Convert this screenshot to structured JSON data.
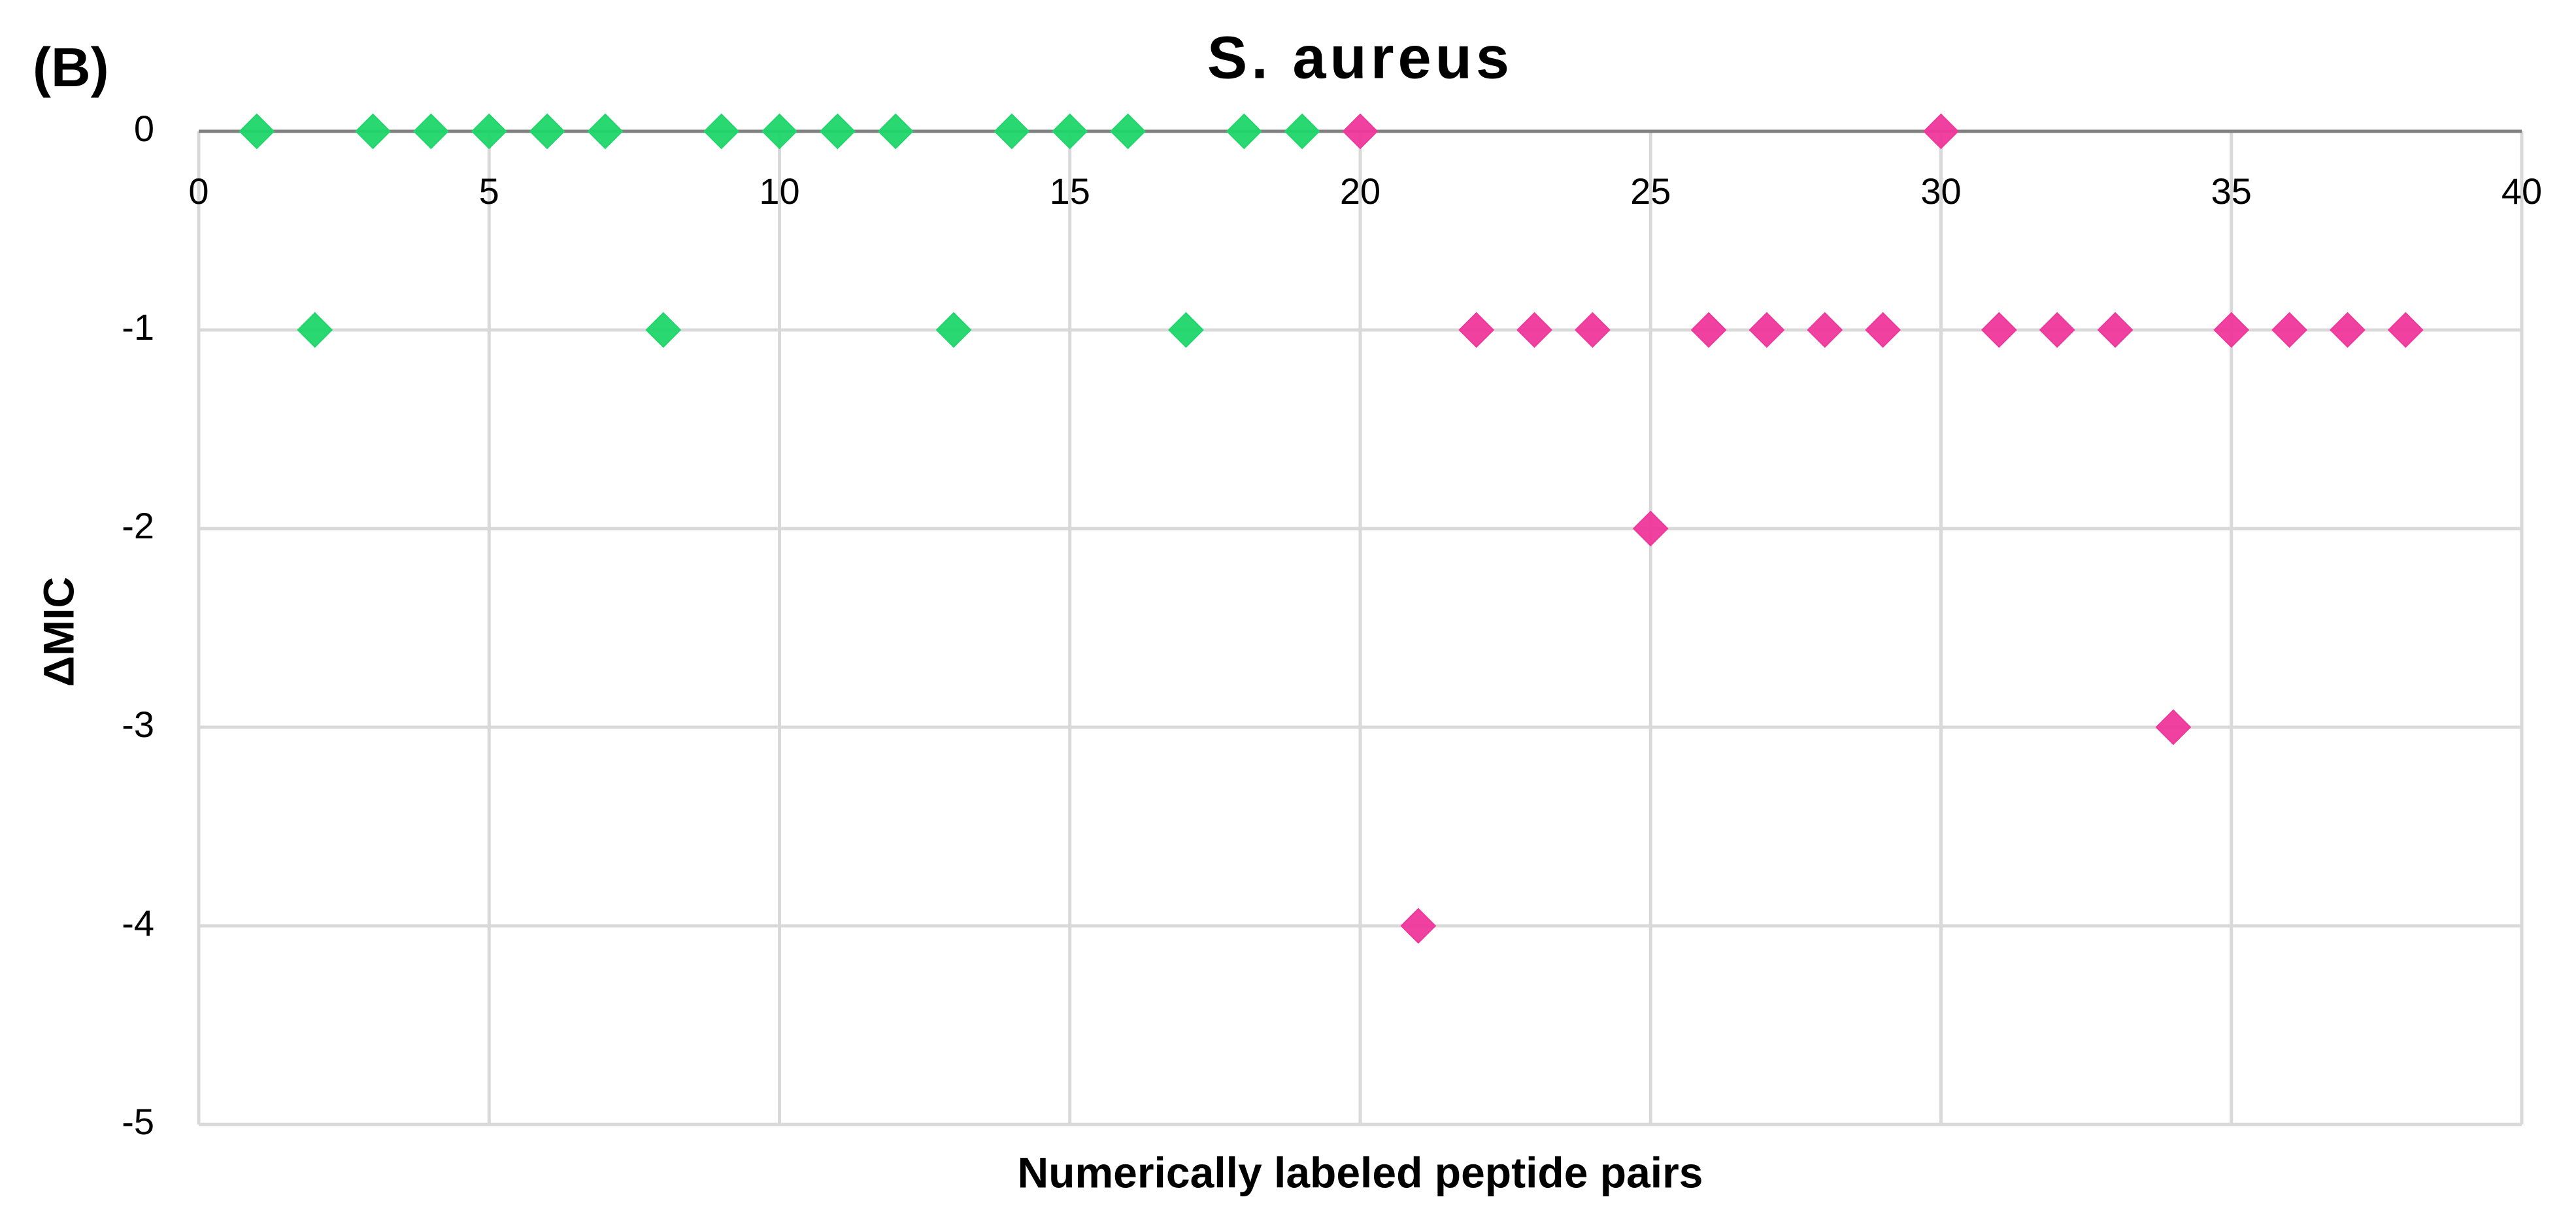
{
  "panel_label": "(B)",
  "chart_data": {
    "type": "scatter",
    "title": "S. aureus",
    "x_label": "Numerically labeled peptide pairs",
    "y_label": "ΔMIC",
    "xlim": [
      0,
      40
    ],
    "xticks": [
      0,
      5,
      10,
      15,
      20,
      25,
      30,
      35,
      40
    ],
    "ylim": [
      -5,
      0
    ],
    "yticks": [
      0,
      -1,
      -2,
      -3,
      -4,
      -5
    ],
    "grid": true,
    "series": [
      {
        "color": "#1fd66a",
        "x": [
          1,
          2,
          3,
          4,
          5,
          6,
          7,
          8,
          9,
          10,
          11,
          12,
          13,
          14,
          15,
          16,
          17,
          18,
          19
        ],
        "values": [
          0,
          -1,
          0,
          0,
          0,
          0,
          0,
          -1,
          0,
          0,
          0,
          0,
          -1,
          0,
          0,
          0,
          -1,
          0,
          0
        ]
      },
      {
        "color": "#f0379b",
        "x": [
          20,
          21,
          22,
          23,
          24,
          25,
          26,
          27,
          28,
          29,
          30,
          31,
          32,
          33,
          34,
          35,
          36,
          37,
          38
        ],
        "values": [
          0,
          -4,
          -1,
          -1,
          -1,
          -2,
          -1,
          -1,
          -1,
          -1,
          0,
          -1,
          -1,
          -1,
          -3,
          -1,
          -1,
          -1,
          -1
        ]
      }
    ]
  }
}
